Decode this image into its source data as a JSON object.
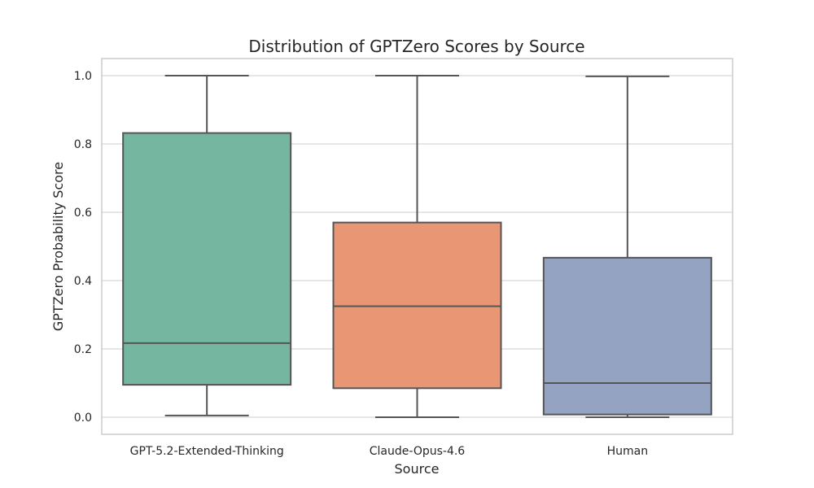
{
  "chart_data": {
    "type": "box",
    "title": "Distribution of GPTZero Scores by Source",
    "xlabel": "Source",
    "ylabel": "GPTZero Probability Score",
    "ylim": [
      -0.05,
      1.05
    ],
    "yticks": [
      0.0,
      0.2,
      0.4,
      0.6,
      0.8,
      1.0
    ],
    "ytick_labels": [
      "0.0",
      "0.2",
      "0.4",
      "0.6",
      "0.8",
      "1.0"
    ],
    "grid": true,
    "categories": [
      "GPT-5.2-Extended-Thinking",
      "Claude-Opus-4.6",
      "Human"
    ],
    "boxes": [
      {
        "whisker_low": 0.005,
        "q1": 0.095,
        "median": 0.217,
        "q3": 0.832,
        "whisker_high": 1.0,
        "color": "#74b6a0"
      },
      {
        "whisker_low": 0.0,
        "q1": 0.085,
        "median": 0.325,
        "q3": 0.57,
        "whisker_high": 1.0,
        "color": "#e99675"
      },
      {
        "whisker_low": 0.0,
        "q1": 0.008,
        "median": 0.1,
        "q3": 0.467,
        "whisker_high": 0.998,
        "color": "#95a3c3"
      }
    ]
  }
}
